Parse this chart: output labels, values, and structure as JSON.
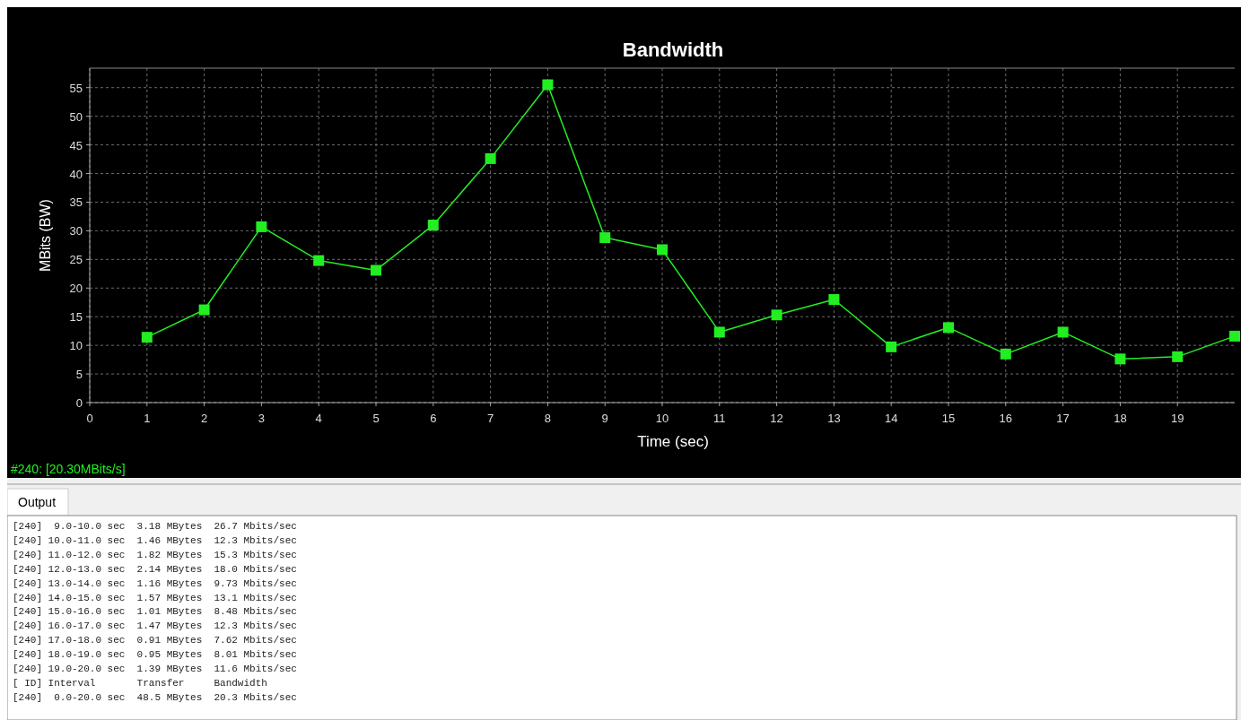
{
  "chart_data": {
    "type": "line",
    "title": "Bandwidth",
    "xlabel": "Time (sec)",
    "ylabel": "MBits (BW)",
    "x": [
      1,
      2,
      3,
      4,
      5,
      6,
      7,
      8,
      9,
      10,
      11,
      12,
      13,
      14,
      15,
      16,
      17,
      18,
      19,
      20
    ],
    "series": [
      {
        "color": "#22ee22",
        "values": [
          11.4,
          16.2,
          30.7,
          24.8,
          23.1,
          31.0,
          42.6,
          55.5,
          28.8,
          26.7,
          12.3,
          15.3,
          18.0,
          9.73,
          13.1,
          8.48,
          12.3,
          7.62,
          8.01,
          11.6
        ]
      }
    ],
    "xlim": [
      0,
      20
    ],
    "xticks": [
      0,
      1,
      2,
      3,
      4,
      5,
      6,
      7,
      8,
      9,
      10,
      11,
      12,
      13,
      14,
      15,
      16,
      17,
      18,
      19
    ],
    "ylim": [
      0,
      58.4
    ],
    "yticks": [
      0,
      5,
      10,
      15,
      20,
      25,
      30,
      35,
      40,
      45,
      50,
      55
    ],
    "grid": true,
    "marker": "square",
    "line_style": "solid",
    "annotations": [
      "#240: [20.30MBits/s]",
      "Output",
      "[240]  9.0-10.0 sec  3.18 MBytes  26.7 Mbits/sec",
      "[240] 10.0-11.0 sec  1.46 MBytes  12.3 Mbits/sec",
      "[240] 11.0-12.0 sec  1.82 MBytes  15.3 Mbits/sec",
      "[240] 12.0-13.0 sec  2.14 MBytes  18.0 Mbits/sec",
      "[240] 13.0-14.0 sec  1.16 MBytes  9.73 Mbits/sec",
      "[240] 14.0-15.0 sec  1.57 MBytes  13.1 Mbits/sec",
      "[240] 15.0-16.0 sec  1.01 MBytes  8.48 Mbits/sec",
      "[240] 16.0-17.0 sec  1.47 MBytes  12.3 Mbits/sec",
      "[240] 17.0-18.0 sec  0.91 MBytes  7.62 Mbits/sec",
      "[240] 18.0-19.0 sec  0.95 MBytes  8.01 Mbits/sec",
      "[240] 19.0-20.0 sec  1.39 MBytes  11.6 Mbits/sec",
      "[ ID] Interval       Transfer     Bandwidth",
      "[240]  0.0-20.0 sec  48.5 MBytes  20.3 Mbits/sec"
    ]
  }
}
